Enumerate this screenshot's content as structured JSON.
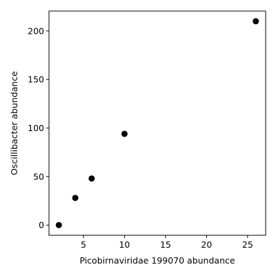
{
  "chart_data": {
    "type": "scatter",
    "title": "",
    "xlabel": "Picobirnaviridae 199070 abundance",
    "ylabel": "Oscillibacter abundance",
    "xlim": [
      0.8,
      27.2
    ],
    "ylim": [
      -10.5,
      220.5
    ],
    "xticks": [
      5,
      10,
      15,
      20,
      25
    ],
    "yticks": [
      0,
      50,
      100,
      150,
      200
    ],
    "grid": false,
    "legend": "none",
    "marker_color": "#000000",
    "points": [
      {
        "x": 2,
        "y": 0
      },
      {
        "x": 4,
        "y": 28
      },
      {
        "x": 6,
        "y": 48
      },
      {
        "x": 10,
        "y": 94
      },
      {
        "x": 26,
        "y": 210
      }
    ]
  }
}
